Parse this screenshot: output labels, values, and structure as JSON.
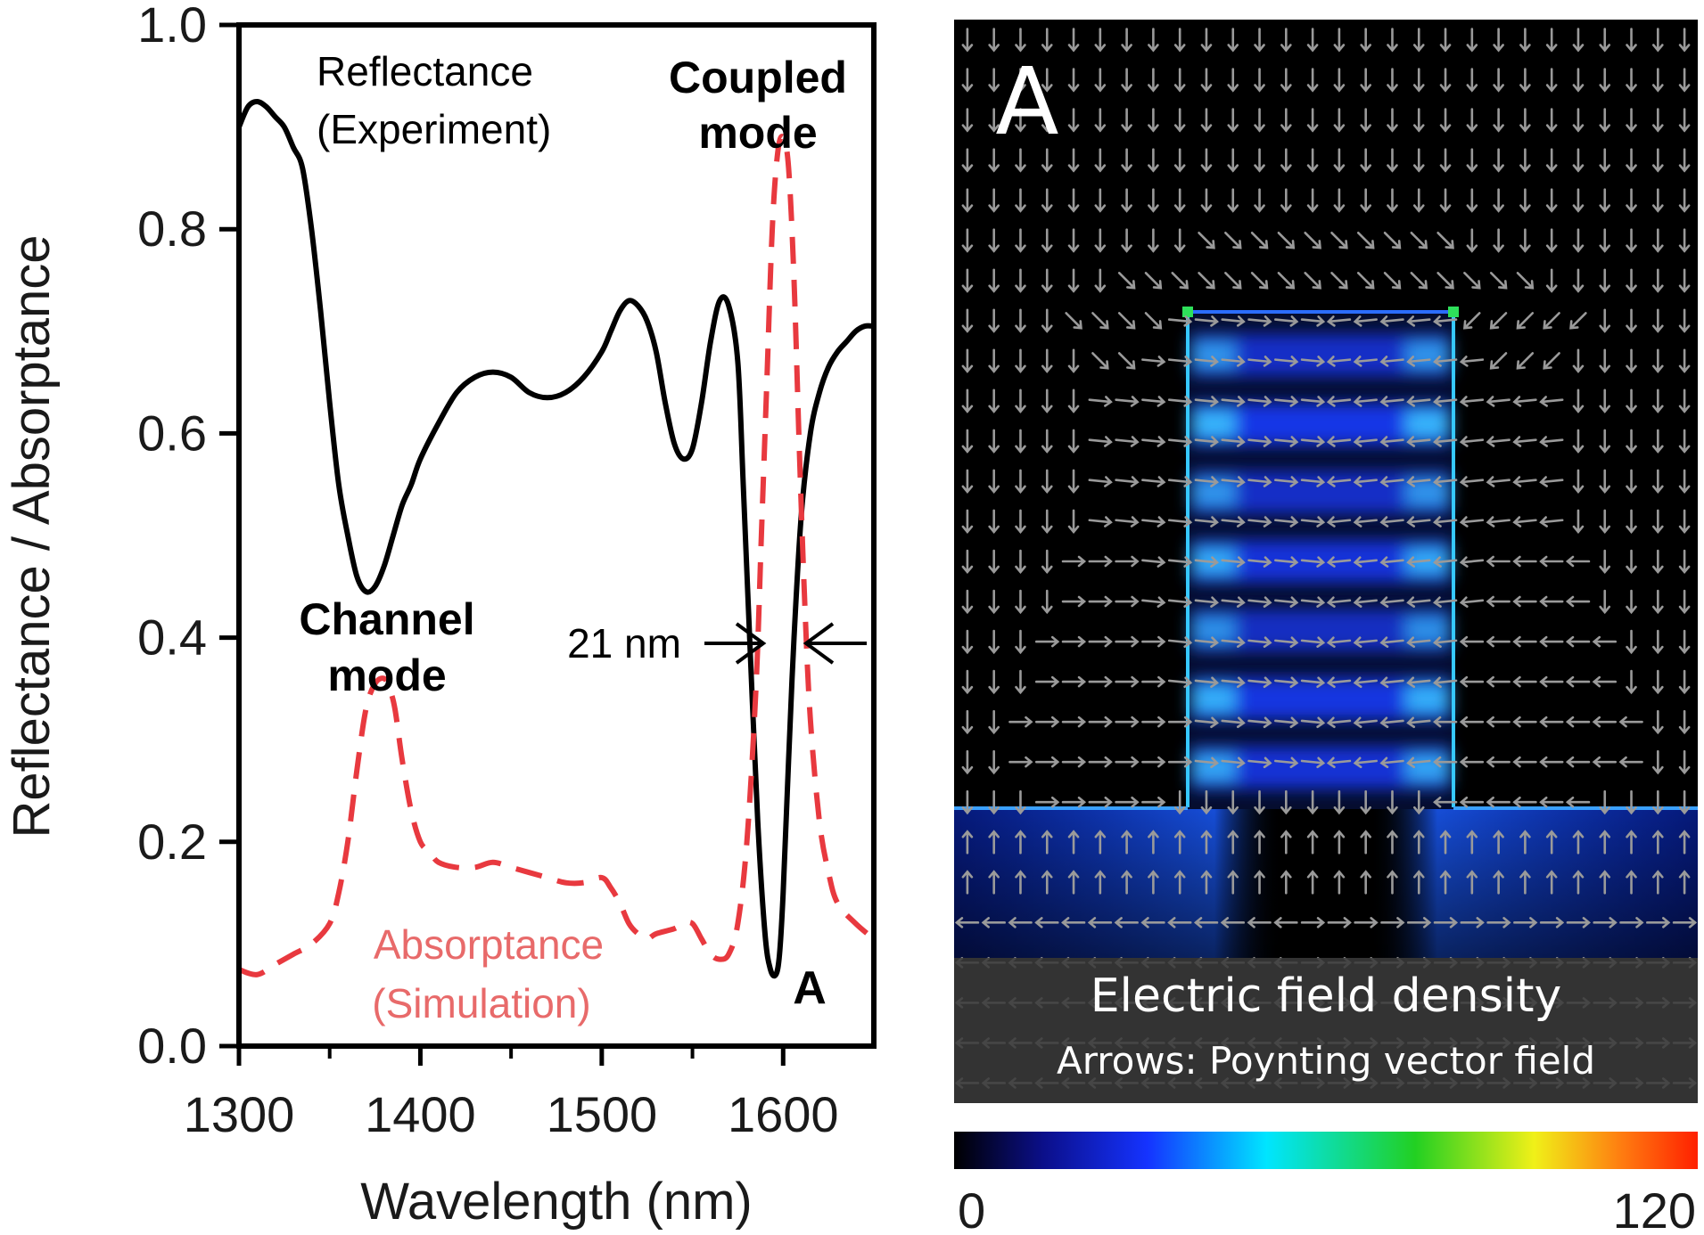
{
  "chart_data": [
    {
      "type": "line",
      "xlabel": "Wavelength (nm)",
      "ylabel": "Reflectance / Absorptance",
      "xlim": [
        1300,
        1650
      ],
      "ylim": [
        0.0,
        1.0
      ],
      "x_ticks": [
        "1300",
        "1400",
        "1500",
        "1600"
      ],
      "y_ticks": [
        "0.0",
        "0.2",
        "0.4",
        "0.6",
        "0.8",
        "1.0"
      ],
      "grid": false,
      "series": [
        {
          "name": "Reflectance (Experiment)",
          "style": "solid",
          "color": "#000000",
          "x": [
            1300,
            1305,
            1310,
            1315,
            1320,
            1325,
            1330,
            1335,
            1340,
            1345,
            1350,
            1355,
            1360,
            1365,
            1370,
            1375,
            1380,
            1385,
            1390,
            1395,
            1400,
            1410,
            1420,
            1430,
            1440,
            1450,
            1460,
            1470,
            1480,
            1490,
            1500,
            1505,
            1510,
            1515,
            1520,
            1525,
            1530,
            1535,
            1540,
            1545,
            1550,
            1555,
            1560,
            1565,
            1570,
            1575,
            1578,
            1582,
            1586,
            1590,
            1593,
            1596,
            1598,
            1600,
            1603,
            1606,
            1610,
            1615,
            1620,
            1625,
            1630,
            1635,
            1640,
            1645,
            1650
          ],
          "values": [
            0.9,
            0.92,
            0.925,
            0.92,
            0.91,
            0.9,
            0.88,
            0.86,
            0.8,
            0.72,
            0.63,
            0.55,
            0.5,
            0.46,
            0.445,
            0.45,
            0.47,
            0.5,
            0.53,
            0.55,
            0.575,
            0.61,
            0.64,
            0.655,
            0.66,
            0.655,
            0.64,
            0.635,
            0.64,
            0.655,
            0.68,
            0.7,
            0.72,
            0.73,
            0.725,
            0.71,
            0.68,
            0.63,
            0.59,
            0.575,
            0.585,
            0.63,
            0.69,
            0.73,
            0.725,
            0.67,
            0.55,
            0.38,
            0.22,
            0.11,
            0.075,
            0.07,
            0.09,
            0.15,
            0.28,
            0.4,
            0.52,
            0.6,
            0.64,
            0.665,
            0.68,
            0.69,
            0.7,
            0.705,
            0.705
          ]
        },
        {
          "name": "Absorptance (Simulation)",
          "style": "dashed",
          "color": "#e8393f",
          "x": [
            1300,
            1310,
            1320,
            1330,
            1340,
            1350,
            1355,
            1360,
            1365,
            1370,
            1375,
            1380,
            1383,
            1386,
            1390,
            1395,
            1400,
            1405,
            1410,
            1420,
            1430,
            1440,
            1450,
            1460,
            1470,
            1480,
            1490,
            1500,
            1505,
            1510,
            1515,
            1520,
            1525,
            1530,
            1540,
            1545,
            1550,
            1555,
            1560,
            1565,
            1570,
            1575,
            1580,
            1585,
            1588,
            1591,
            1594,
            1597,
            1600,
            1603,
            1606,
            1609,
            1612,
            1615,
            1620,
            1625,
            1630,
            1640,
            1650
          ],
          "values": [
            0.075,
            0.07,
            0.08,
            0.09,
            0.1,
            0.12,
            0.15,
            0.2,
            0.27,
            0.33,
            0.355,
            0.36,
            0.35,
            0.33,
            0.28,
            0.23,
            0.2,
            0.19,
            0.18,
            0.175,
            0.175,
            0.18,
            0.175,
            0.17,
            0.165,
            0.16,
            0.16,
            0.165,
            0.155,
            0.14,
            0.12,
            0.11,
            0.105,
            0.11,
            0.115,
            0.12,
            0.12,
            0.105,
            0.09,
            0.085,
            0.09,
            0.12,
            0.2,
            0.35,
            0.5,
            0.65,
            0.8,
            0.875,
            0.89,
            0.86,
            0.75,
            0.58,
            0.43,
            0.32,
            0.22,
            0.17,
            0.14,
            0.12,
            0.105
          ]
        }
      ]
    },
    {
      "type": "heatmap",
      "colorbar": {
        "min": "0",
        "max": "120"
      },
      "colors": [
        "#000000",
        "#0b0f8a",
        "#1533ff",
        "#00e5ff",
        "#22d022",
        "#f0f018",
        "#ff7a10",
        "#ff2000"
      ],
      "intensity_rows": [
        0.55,
        0.85,
        0.55,
        0.75,
        0.5,
        0.8,
        0.7
      ],
      "arrow_rows": [
        "dddddddddddddddddddddddddddd",
        "dddddddddddddddddddddddddddd",
        "dddddddddddddddddddddddddddd",
        "dddddddddddddddddddddddddddd",
        "dddddddddddddddddddddddddddd",
        "dddddddddbbbbbbbbbbddddddddd",
        "ddddddbbbbbbbbbbbbbbbbdddddd",
        "ddddbbbbeeeeeeeeeeeaaaaadddd",
        "dddddbbeeeeeeeeeeeeeaaaddddd",
        "dddddeeeeeeeeeeeeeeeeeeddddd",
        "dddddeeeeeeeeeeeeeeeeeeddddd",
        "dddddeeeeeeeeeeeeeeeeeeddddd",
        "dddddeeeeeeeeeeeeeeeeeeddddd",
        "ddddccceeeeeeeeeeeeeccccdddd",
        "ddddccceeeeeeeeeeeeeccccdddd",
        "dddccccceeeeeeeeeeeccccccddd",
        "dddccccceeeeeeeeeeeccccccddd",
        "ddccccccceeeeeeeeeccccccccdd",
        "ddccccccceeeeeeeeeccccccccdd",
        "dddcccccddddddddddccccccdddd",
        "uuuuuuuuuuuuuuuuuuuuuuuuuuuu",
        "uuuuuuuuuuuuuuuuuuuuuuuuuuuu",
        "lllllllllllllrrrrrrrrrrrrrrr",
        "lllllllllllllrrrrrrrrrrrrrrr",
        "lllllllllllllrrrrrrrrrrrrrrr",
        "lllllllllllllrrrrrrrrrrrrrrr",
        "lllllllllllllrrrrrrrrrrrrrrr"
      ]
    }
  ],
  "annotations": {
    "reflectance_line1": "Reflectance",
    "reflectance_line2": "(Experiment)",
    "coupled_line1": "Coupled",
    "coupled_line2": "mode",
    "channel_line1": "Channel",
    "channel_line2": "mode",
    "absorptance_line1": "Absorptance",
    "absorptance_line2": "(Simulation)",
    "fwhm": "21 nm",
    "point_marker": "A"
  },
  "field_map": {
    "panel_label": "A",
    "caption_title": "Electric field density",
    "caption_subtitle": "Arrows: Poynting vector field",
    "colorbar_min": "0",
    "colorbar_max": "120"
  }
}
